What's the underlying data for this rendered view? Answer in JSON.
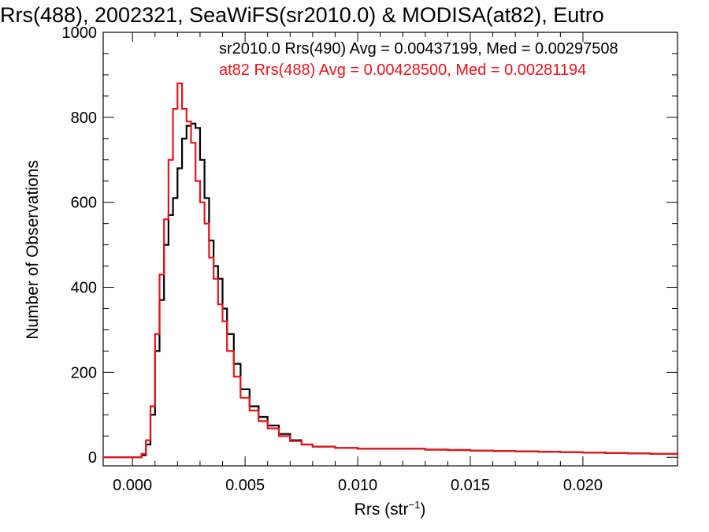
{
  "chart_data": {
    "type": "line",
    "step": true,
    "title": "Rrs(488), 2002321, SeaWiFS(sr2010.0) & MODISA(at82), Eutro",
    "xlabel": "Rrs (str",
    "xlabel_sup": "−1",
    "xlabel_close": ")",
    "ylabel": "Number of Observations",
    "xlim": [
      -0.0013,
      0.0242
    ],
    "ylim": [
      -20,
      1000
    ],
    "x_ticks": [
      0.0,
      0.005,
      0.01,
      0.015,
      0.02
    ],
    "x_tick_labels": [
      "0.000",
      "0.005",
      "0.010",
      "0.015",
      "0.020"
    ],
    "y_ticks": [
      0,
      200,
      400,
      600,
      800,
      1000
    ],
    "y_tick_labels": [
      "0",
      "200",
      "400",
      "600",
      "800",
      "1000"
    ],
    "legend": [
      {
        "text": "sr2010.0 Rrs(490) Avg = 0.00437199, Med = 0.00297508",
        "color": "#000000"
      },
      {
        "text": "at82 Rrs(488) Avg = 0.00428500, Med = 0.00281194",
        "color": "#e8141c"
      }
    ],
    "series": [
      {
        "color": "#000000",
        "x": [
          -0.0013,
          0.0,
          0.0004,
          0.0006,
          0.0008,
          0.001,
          0.0012,
          0.0014,
          0.0016,
          0.0018,
          0.002,
          0.0022,
          0.0024,
          0.0026,
          0.0028,
          0.003,
          0.0032,
          0.0034,
          0.0036,
          0.0038,
          0.004,
          0.0042,
          0.0045,
          0.0048,
          0.0052,
          0.0056,
          0.006,
          0.0065,
          0.007,
          0.0075,
          0.008,
          0.009,
          0.01,
          0.011,
          0.012,
          0.013,
          0.014,
          0.015,
          0.016,
          0.017,
          0.018,
          0.019,
          0.02,
          0.021,
          0.022,
          0.023,
          0.0242
        ],
        "y": [
          0,
          0,
          5,
          30,
          100,
          250,
          370,
          500,
          570,
          610,
          680,
          750,
          780,
          785,
          775,
          700,
          610,
          510,
          450,
          420,
          350,
          290,
          220,
          160,
          120,
          95,
          75,
          55,
          40,
          30,
          25,
          22,
          20,
          20,
          20,
          18,
          17,
          16,
          15,
          14,
          13,
          12,
          11,
          10,
          9,
          8,
          5
        ]
      },
      {
        "color": "#e8141c",
        "x": [
          -0.0013,
          0.0,
          0.0004,
          0.0006,
          0.0008,
          0.001,
          0.0012,
          0.0014,
          0.0016,
          0.0018,
          0.002,
          0.0022,
          0.0024,
          0.0026,
          0.0028,
          0.003,
          0.0032,
          0.0034,
          0.0036,
          0.0038,
          0.004,
          0.0042,
          0.0045,
          0.0048,
          0.0052,
          0.0056,
          0.006,
          0.0065,
          0.007,
          0.0075,
          0.008,
          0.009,
          0.01,
          0.011,
          0.012,
          0.013,
          0.014,
          0.015,
          0.016,
          0.017,
          0.018,
          0.019,
          0.02,
          0.021,
          0.022,
          0.023,
          0.0242
        ],
        "y": [
          0,
          0,
          8,
          40,
          120,
          290,
          430,
          560,
          700,
          820,
          880,
          820,
          790,
          740,
          650,
          600,
          550,
          470,
          420,
          360,
          320,
          250,
          190,
          140,
          110,
          85,
          68,
          50,
          38,
          30,
          25,
          22,
          20,
          20,
          20,
          18,
          17,
          16,
          15,
          14,
          13,
          12,
          11,
          10,
          9,
          8,
          5
        ]
      }
    ]
  }
}
